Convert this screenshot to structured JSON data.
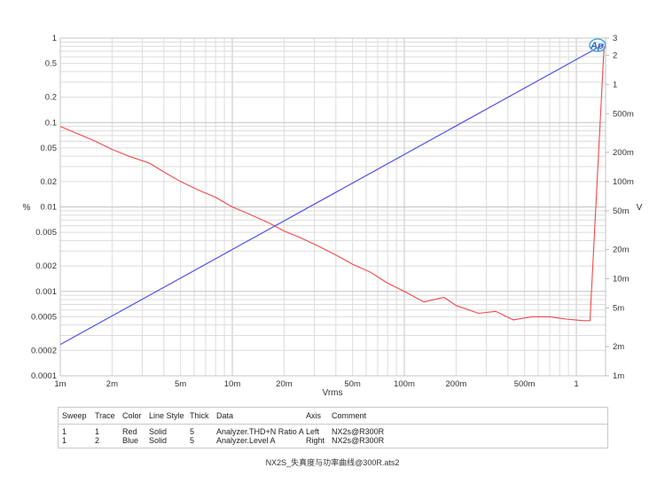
{
  "chart_data": {
    "type": "line",
    "title": "",
    "xlabel": "Vrms",
    "ylabel_left": "%",
    "ylabel_right": "V",
    "x_scale": "log",
    "y_scale": "log",
    "xlim": [
      0.001,
      1.5
    ],
    "ylim_left": [
      0.0001,
      1
    ],
    "ylim_right": [
      0.001,
      3
    ],
    "grid": true,
    "x_ticks": [
      "1m",
      "2m",
      "5m",
      "10m",
      "20m",
      "50m",
      "100m",
      "200m",
      "500m",
      "1"
    ],
    "y_ticks_left": [
      "1",
      "0.5",
      "0.2",
      "0.1",
      "0.05",
      "0.02",
      "0.01",
      "0.005",
      "0.002",
      "0.001",
      "0.0005",
      "0.0002",
      "0.0001"
    ],
    "y_ticks_right": [
      "3",
      "2",
      "1",
      "500m",
      "200m",
      "100m",
      "50m",
      "20m",
      "10m",
      "5m",
      "2m",
      "1m"
    ],
    "series": [
      {
        "name": "Analyzer.THD+N Ratio A",
        "color": "#f04848",
        "axis": "left",
        "x": [
          0.001,
          0.0016,
          0.002,
          0.0025,
          0.0033,
          0.004,
          0.005,
          0.0063,
          0.008,
          0.01,
          0.0126,
          0.016,
          0.02,
          0.025,
          0.032,
          0.04,
          0.05,
          0.063,
          0.08,
          0.1,
          0.13,
          0.17,
          0.2,
          0.27,
          0.34,
          0.43,
          0.55,
          0.7,
          0.87,
          1.1,
          1.2,
          1.45
        ],
        "values": [
          0.09,
          0.06,
          0.048,
          0.04,
          0.033,
          0.026,
          0.02,
          0.016,
          0.013,
          0.01,
          0.0082,
          0.0066,
          0.0052,
          0.0043,
          0.0034,
          0.0027,
          0.0021,
          0.0017,
          0.00125,
          0.001,
          0.00075,
          0.00085,
          0.00068,
          0.00055,
          0.00058,
          0.00046,
          0.0005,
          0.0005,
          0.00047,
          0.00045,
          0.00045,
          0.8
        ]
      },
      {
        "name": "Analyzer.Level A",
        "color": "#4444ee",
        "axis": "right",
        "x": [
          0.001,
          1.45
        ],
        "values": [
          0.0021,
          2.6
        ]
      }
    ]
  },
  "legend_table": {
    "headers": [
      "Sweep",
      "Trace",
      "Color",
      "Line Style",
      "Thick",
      "Data",
      "Axis",
      "Comment"
    ],
    "rows": [
      [
        "1",
        "1",
        "Red",
        "Solid",
        "5",
        "Analyzer.THD+N Ratio A",
        "Left",
        "NX2s@R300R"
      ],
      [
        "1",
        "2",
        "Blue",
        "Solid",
        "5",
        "Analyzer.Level A",
        "Right",
        "NX2s@R300R"
      ]
    ]
  },
  "footer": {
    "filename": "NX2S_失真度与功率曲线@300R.ats2"
  },
  "logo": {
    "text": "Ap"
  }
}
